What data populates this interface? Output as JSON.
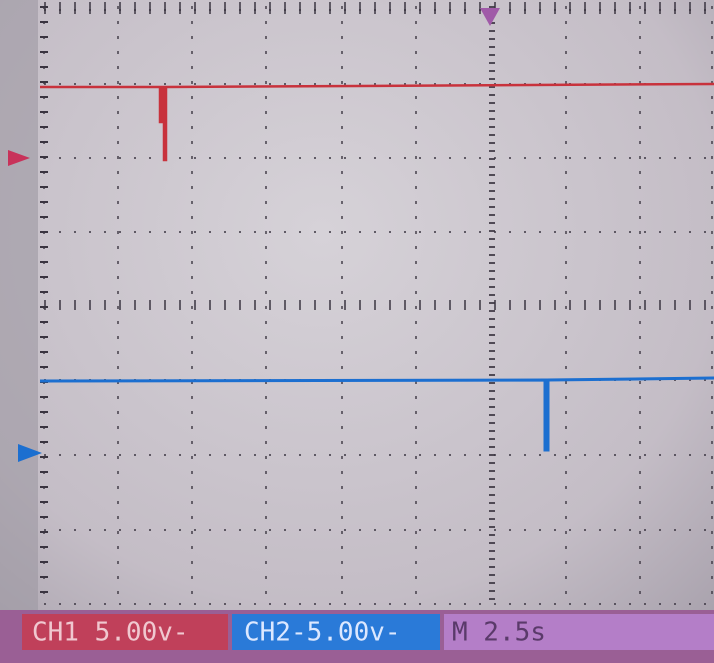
{
  "status_bar": {
    "ch1": "CH1 5.00v-",
    "ch2": "CH2-5.00v-",
    "timebase": "M 2.5s"
  }
}
